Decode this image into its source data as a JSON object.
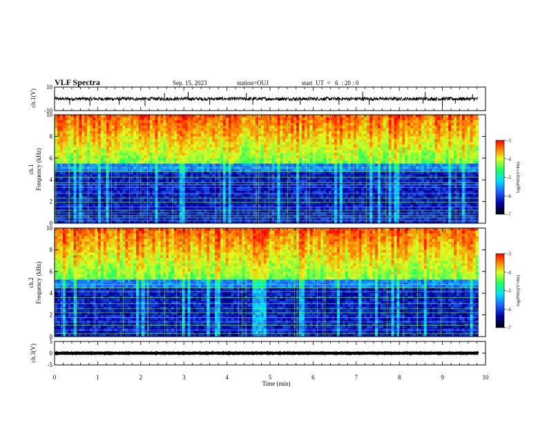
{
  "header": {
    "title": "VLF Spectra",
    "date": "Sep. 15, 2023",
    "station": "station=OUJ",
    "start": "start  UT  =   6  : 20 : 0"
  },
  "chart_data": [
    {
      "type": "line",
      "ylabel": "ch.1(V)",
      "ylim": [
        -10,
        10
      ],
      "yticks": [
        10,
        -10
      ],
      "xlim": [
        0,
        10
      ],
      "baseline": 0,
      "noise_level": 1.5,
      "spikes": [
        {
          "x": 0.35,
          "y": -5
        },
        {
          "x": 0.82,
          "y": -6
        },
        {
          "x": 1.5,
          "y": -5
        },
        {
          "x": 2.1,
          "y": -6
        },
        {
          "x": 2.55,
          "y": 5
        },
        {
          "x": 3.1,
          "y": 6
        },
        {
          "x": 3.6,
          "y": -5
        },
        {
          "x": 4.45,
          "y": 5
        },
        {
          "x": 4.6,
          "y": -5
        },
        {
          "x": 5.7,
          "y": -5
        },
        {
          "x": 6.6,
          "y": -5
        },
        {
          "x": 7.15,
          "y": 6
        },
        {
          "x": 7.3,
          "y": -5
        },
        {
          "x": 8.55,
          "y": -4
        },
        {
          "x": 8.6,
          "y": 6
        },
        {
          "x": 9.0,
          "y": -7
        },
        {
          "x": 9.3,
          "y": -4
        },
        {
          "x": 9.7,
          "y": 4
        }
      ]
    },
    {
      "type": "heatmap",
      "ylabel": "ch.1",
      "ylabel2": "Frequency (kHz)",
      "ylim": [
        0,
        10
      ],
      "yticks": [
        0,
        2,
        4,
        6,
        8,
        10
      ],
      "xlim": [
        0,
        10
      ],
      "colorbar": {
        "label": "log(PSD)(V²/Hz)",
        "range": [
          -7,
          -3
        ],
        "ticks": [
          -3,
          -4,
          -5,
          -6,
          -7
        ]
      },
      "cutoff_khz": 5.5,
      "lines_khz": [
        0.25,
        0.5,
        0.7,
        0.95,
        1.2,
        1.5,
        1.95,
        2.3,
        2.75,
        3.3,
        3.55,
        3.75,
        4.25,
        4.75,
        5.1
      ]
    },
    {
      "type": "heatmap",
      "ylabel": "ch.2",
      "ylabel2": "Frequency (kHz)",
      "ylim": [
        0,
        10
      ],
      "yticks": [
        0,
        2,
        4,
        6,
        8,
        10
      ],
      "xlim": [
        0,
        10
      ],
      "colorbar": {
        "label": "log(PSD)(V²/Hz)",
        "range": [
          -7,
          -3
        ],
        "ticks": [
          -3,
          -4,
          -5,
          -6,
          -7
        ]
      },
      "cutoff_khz": 5.3,
      "lines_khz": [
        0.3,
        0.6,
        1.05,
        1.35,
        1.75,
        2.2,
        2.6,
        3.05,
        3.6,
        4.15,
        4.5,
        4.8
      ]
    },
    {
      "type": "line",
      "ylabel": "ch.3(V)",
      "ylim": [
        -5,
        5
      ],
      "yticks": [
        5,
        0,
        -5
      ],
      "xlim": [
        0,
        10
      ],
      "baseline": 0,
      "noise_level": 0.1,
      "spikes": []
    }
  ],
  "xaxis": {
    "label": "Time (min)",
    "ticks": [
      "0",
      "1",
      "2",
      "3",
      "4",
      "5",
      "6",
      "7",
      "8",
      "9",
      "10"
    ]
  }
}
